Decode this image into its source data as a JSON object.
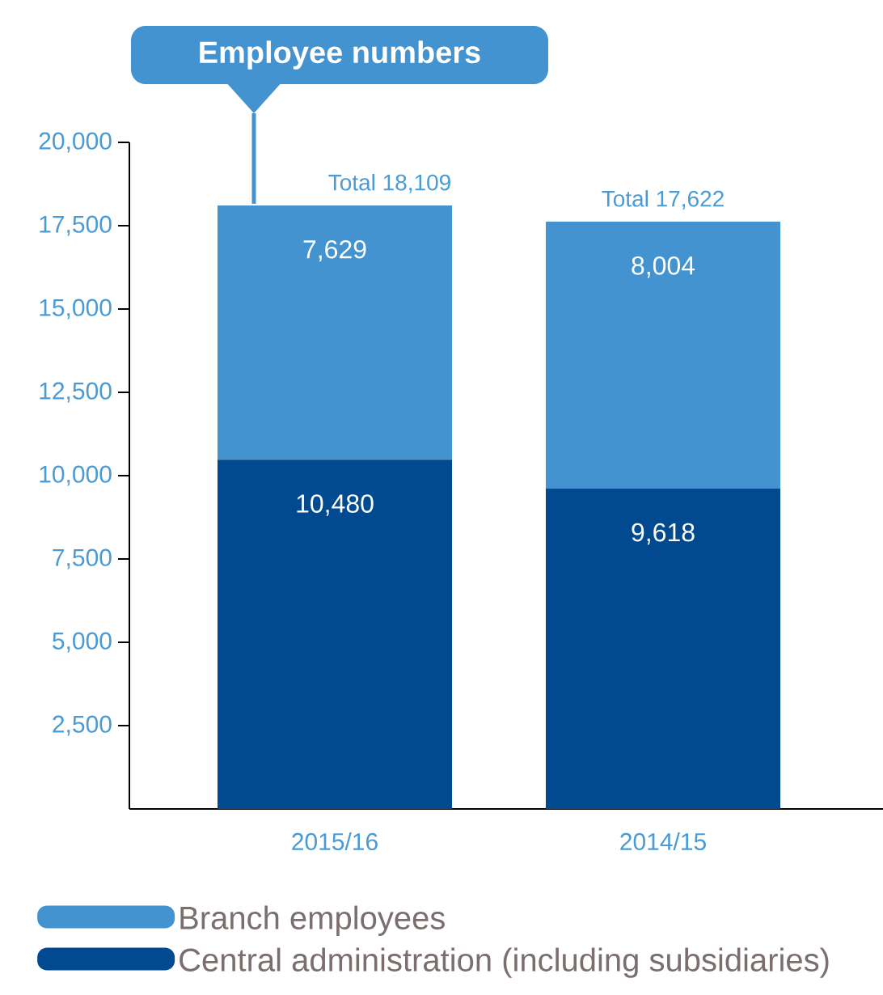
{
  "chart_data": {
    "type": "bar",
    "stacked": true,
    "title": "Employee numbers",
    "categories": [
      "2015/16",
      "2014/15"
    ],
    "series": [
      {
        "name": "Central administration (including subsidiaries)",
        "color": "#014a8f",
        "values": [
          10480,
          9618
        ],
        "value_labels": [
          "10,480",
          "9,618"
        ]
      },
      {
        "name": "Branch employees",
        "color": "#4393d0",
        "values": [
          7629,
          8004
        ],
        "value_labels": [
          "7,629",
          "8,004"
        ]
      }
    ],
    "totals": [
      "Total 18,109",
      "Total 17,622"
    ],
    "ylim": [
      0,
      20000
    ],
    "yticks": [
      {
        "value": 2500,
        "label": "2,500"
      },
      {
        "value": 5000,
        "label": "5,000"
      },
      {
        "value": 7500,
        "label": "7,500"
      },
      {
        "value": 10000,
        "label": "10,000"
      },
      {
        "value": 12500,
        "label": "12,500"
      },
      {
        "value": 15000,
        "label": "15,000"
      },
      {
        "value": 17500,
        "label": "17,500"
      },
      {
        "value": 20000,
        "label": "20,000"
      }
    ],
    "legend": "bottom",
    "grid": false
  }
}
